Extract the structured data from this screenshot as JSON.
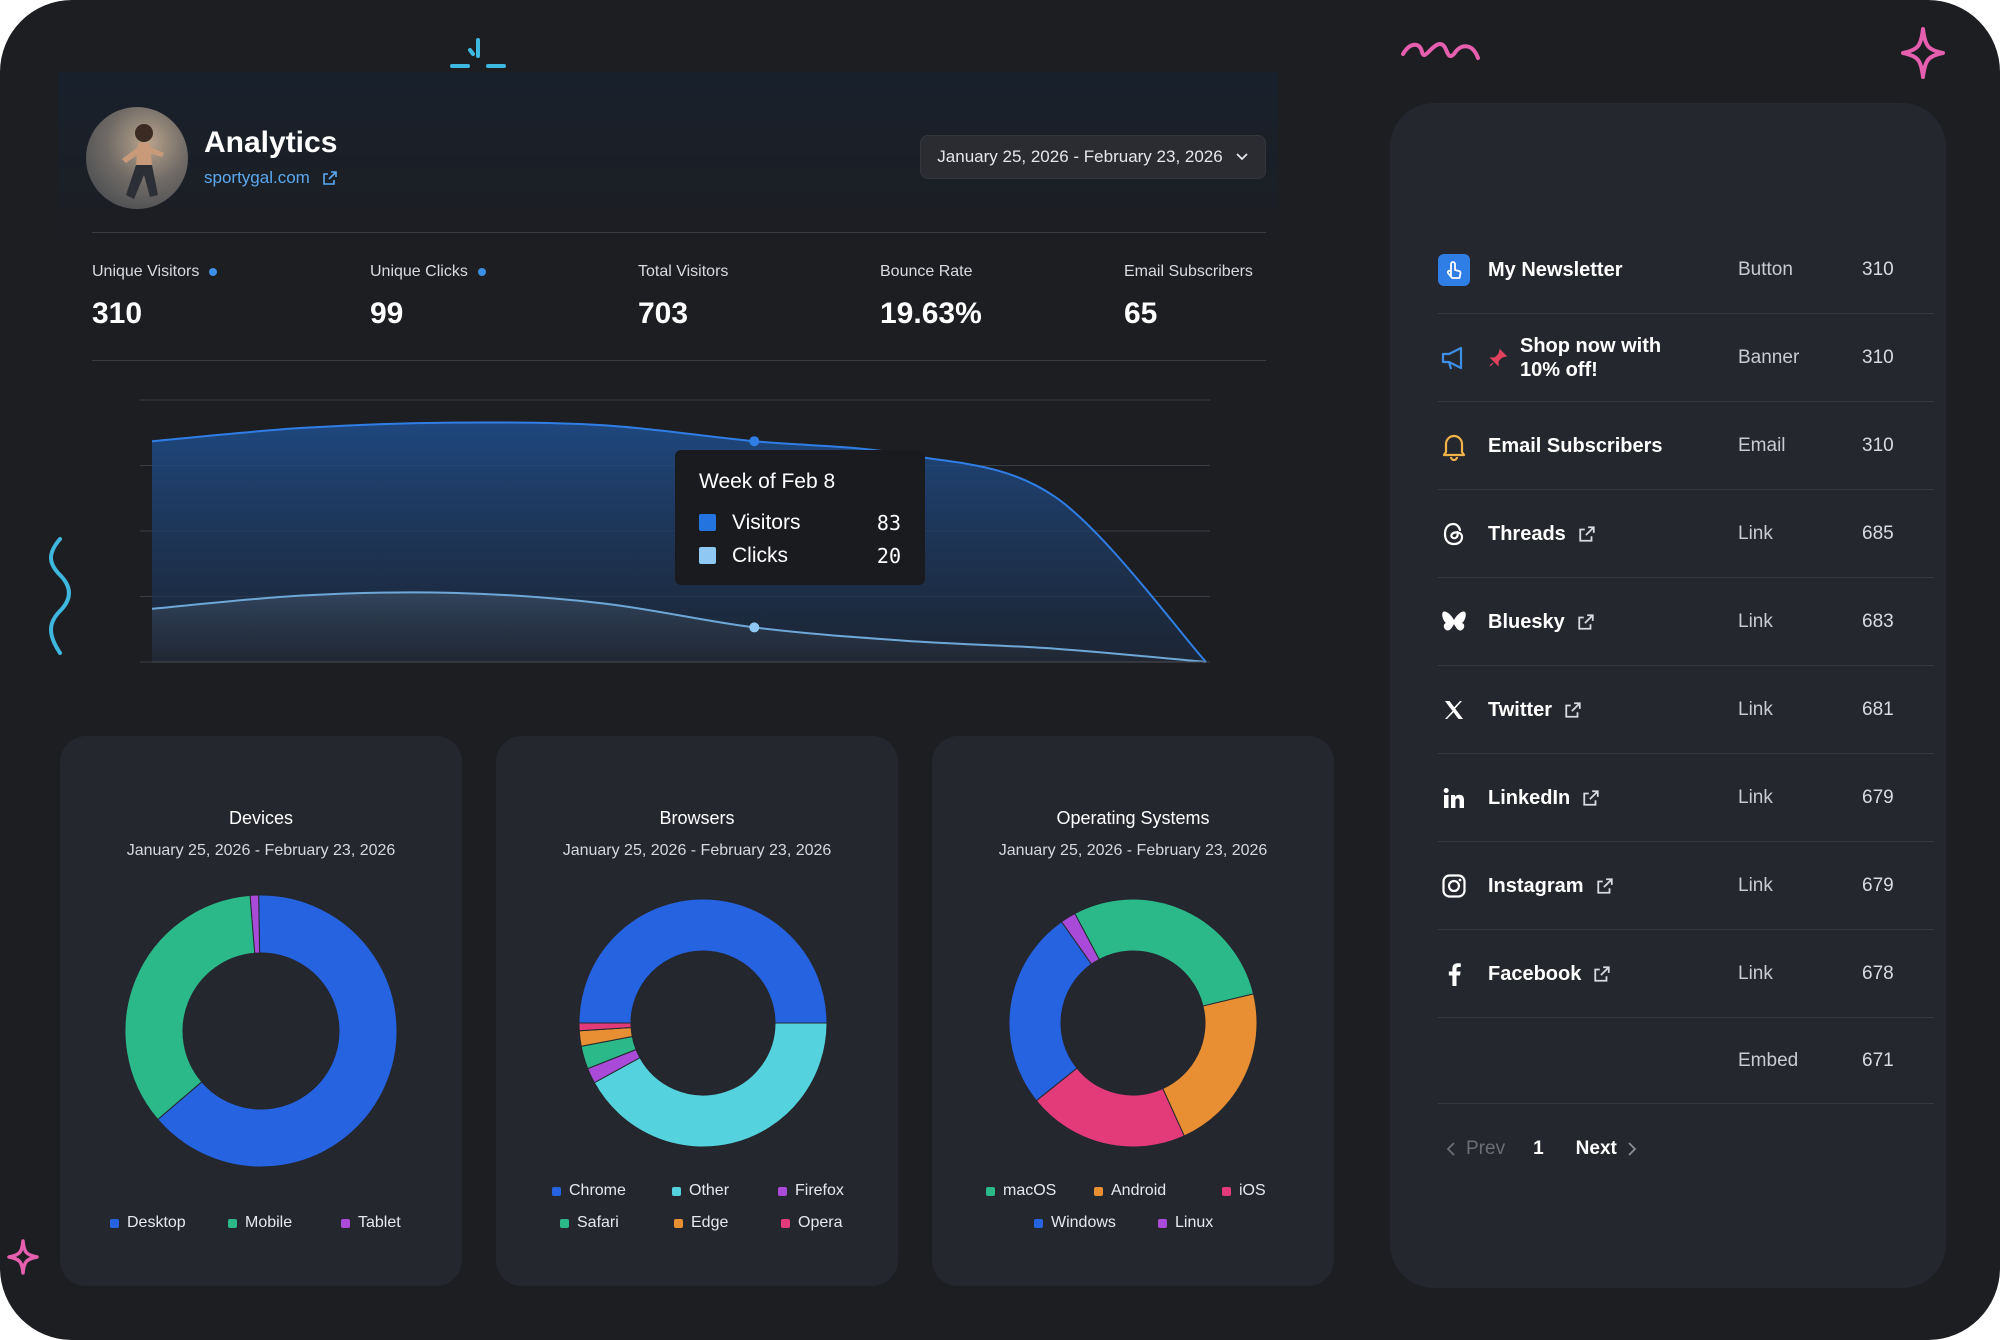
{
  "header": {
    "title": "Analytics",
    "site_link": "sportygal.com",
    "date_range": "January 25, 2026 - February 23, 2026"
  },
  "stats": [
    {
      "label": "Unique Visitors",
      "value": "310",
      "dot": true
    },
    {
      "label": "Unique Clicks",
      "value": "99",
      "dot": true
    },
    {
      "label": "Total Visitors",
      "value": "703",
      "dot": false
    },
    {
      "label": "Bounce Rate",
      "value": "19.63%",
      "dot": false
    },
    {
      "label": "Email Subscribers",
      "value": "65",
      "dot": false
    }
  ],
  "tooltip": {
    "title": "Week of Feb 8",
    "rows": [
      {
        "name": "Visitors",
        "value": "83",
        "color": "#2474e0"
      },
      {
        "name": "Clicks",
        "value": "20",
        "color": "#8fc8f2"
      }
    ]
  },
  "chart_data": [
    {
      "type": "area",
      "series": [
        {
          "name": "Visitors",
          "values": [
            83,
            88,
            90,
            89,
            83,
            78,
            62,
            0
          ],
          "color": "#2474e0"
        },
        {
          "name": "Clicks",
          "values": [
            20,
            25,
            26,
            22,
            13,
            8,
            5,
            0
          ],
          "color": "#8fc8f2"
        }
      ],
      "ylim": [
        0,
        100
      ],
      "grid": true
    },
    {
      "type": "pie",
      "title": "Devices",
      "subtitle": "January 25, 2026 - February 23, 2026",
      "categories": [
        "Desktop",
        "Mobile",
        "Tablet"
      ],
      "values": [
        64,
        35,
        1
      ],
      "colors": [
        "#2563e0",
        "#2bb989",
        "#a94bd8"
      ]
    },
    {
      "type": "pie",
      "title": "Browsers",
      "subtitle": "January 25, 2026 - February 23, 2026",
      "categories": [
        "Chrome",
        "Other",
        "Firefox",
        "Safari",
        "Edge",
        "Opera"
      ],
      "values": [
        50,
        42,
        2,
        3,
        2,
        1
      ],
      "colors": [
        "#2563e0",
        "#54d3de",
        "#a94bd8",
        "#2bb989",
        "#e88f33",
        "#e33a7a"
      ]
    },
    {
      "type": "pie",
      "title": "Operating Systems",
      "subtitle": "January 25, 2026 - February 23, 2026",
      "categories": [
        "macOS",
        "Android",
        "iOS",
        "Windows",
        "Linux"
      ],
      "values": [
        29,
        22,
        21,
        26,
        2
      ],
      "colors": [
        "#2bb989",
        "#e88f33",
        "#e33a7a",
        "#2563e0",
        "#a94bd8"
      ]
    }
  ],
  "devices_legend": [
    {
      "label": "Desktop",
      "color": "#2563e0"
    },
    {
      "label": "Mobile",
      "color": "#2bb989"
    },
    {
      "label": "Tablet",
      "color": "#a94bd8"
    }
  ],
  "browsers_legend": [
    {
      "label": "Chrome",
      "color": "#2563e0"
    },
    {
      "label": "Other",
      "color": "#54d3de"
    },
    {
      "label": "Firefox",
      "color": "#a94bd8"
    },
    {
      "label": "Safari",
      "color": "#2bb989"
    },
    {
      "label": "Edge",
      "color": "#e88f33"
    },
    {
      "label": "Opera",
      "color": "#e33a7a"
    }
  ],
  "os_legend": [
    {
      "label": "macOS",
      "color": "#2bb989"
    },
    {
      "label": "Android",
      "color": "#e88f33"
    },
    {
      "label": "iOS",
      "color": "#e33a7a"
    },
    {
      "label": "Windows",
      "color": "#2563e0"
    },
    {
      "label": "Linux",
      "color": "#a94bd8"
    }
  ],
  "links": [
    {
      "title": "My Newsletter",
      "type": "Button",
      "count": "310",
      "icon": "pointer-hand-icon",
      "external": false
    },
    {
      "title": "Shop now with 10% off!",
      "type": "Banner",
      "count": "310",
      "icon": "megaphone-icon",
      "external": false,
      "pinned": true
    },
    {
      "title": "Email Subscribers",
      "type": "Email",
      "count": "310",
      "icon": "bell-icon",
      "external": false
    },
    {
      "title": "Threads",
      "type": "Link",
      "count": "685",
      "icon": "threads-icon",
      "external": true
    },
    {
      "title": "Bluesky",
      "type": "Link",
      "count": "683",
      "icon": "bluesky-icon",
      "external": true
    },
    {
      "title": "Twitter",
      "type": "Link",
      "count": "681",
      "icon": "x-icon",
      "external": true
    },
    {
      "title": "LinkedIn",
      "type": "Link",
      "count": "679",
      "icon": "linkedin-icon",
      "external": true
    },
    {
      "title": "Instagram",
      "type": "Link",
      "count": "679",
      "icon": "instagram-icon",
      "external": true
    },
    {
      "title": "Facebook",
      "type": "Link",
      "count": "678",
      "icon": "facebook-icon",
      "external": true
    },
    {
      "title": "",
      "type": "Embed",
      "count": "671",
      "icon": "",
      "external": false
    }
  ],
  "pagination": {
    "prev": "Prev",
    "page": "1",
    "next": "Next"
  },
  "colors": {
    "accent_blue": "#3d8fe6",
    "pink": "#e55fae",
    "cyan": "#3fb8e0",
    "panel": "#25272e",
    "background": "#1d1e22"
  }
}
